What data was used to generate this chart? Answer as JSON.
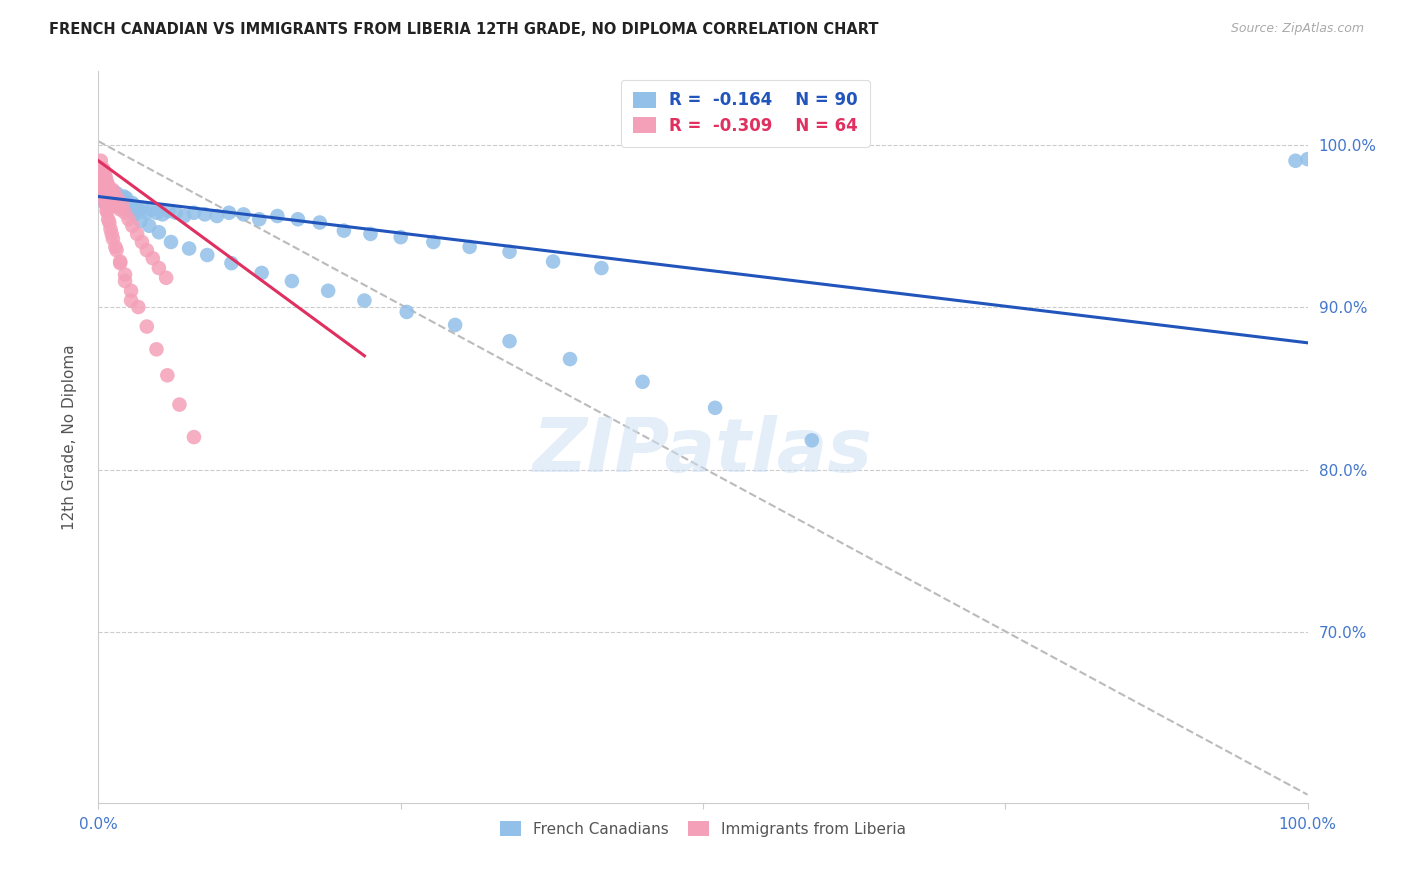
{
  "title": "FRENCH CANADIAN VS IMMIGRANTS FROM LIBERIA 12TH GRADE, NO DIPLOMA CORRELATION CHART",
  "source": "Source: ZipAtlas.com",
  "ylabel": "12th Grade, No Diploma",
  "ytick_labels": [
    "100.0%",
    "90.0%",
    "80.0%",
    "70.0%"
  ],
  "ytick_values": [
    1.0,
    0.9,
    0.8,
    0.7
  ],
  "xlim": [
    0.0,
    1.0
  ],
  "ylim": [
    0.595,
    1.045
  ],
  "watermark": "ZIPatlas",
  "legend_blue_r": "-0.164",
  "legend_blue_n": "90",
  "legend_pink_r": "-0.309",
  "legend_pink_n": "64",
  "legend_label_blue": "French Canadians",
  "legend_label_pink": "Immigrants from Liberia",
  "blue_color": "#92c0e8",
  "pink_color": "#f4a0b8",
  "trendline_blue_color": "#2255bb",
  "trendline_pink_color": "#e03060",
  "trendline_gray_color": "#bbbbbb",
  "grid_color": "#cccccc",
  "title_color": "#222222",
  "source_color": "#aaaaaa",
  "right_axis_color": "#4477cc",
  "blue_x": [
    0.003,
    0.004,
    0.005,
    0.005,
    0.005,
    0.006,
    0.006,
    0.007,
    0.007,
    0.008,
    0.008,
    0.008,
    0.009,
    0.009,
    0.01,
    0.01,
    0.01,
    0.011,
    0.011,
    0.012,
    0.012,
    0.013,
    0.013,
    0.014,
    0.014,
    0.015,
    0.015,
    0.016,
    0.017,
    0.018,
    0.019,
    0.02,
    0.021,
    0.022,
    0.023,
    0.024,
    0.026,
    0.028,
    0.03,
    0.033,
    0.036,
    0.04,
    0.044,
    0.048,
    0.053,
    0.058,
    0.064,
    0.071,
    0.079,
    0.088,
    0.098,
    0.108,
    0.12,
    0.133,
    0.148,
    0.165,
    0.183,
    0.203,
    0.225,
    0.25,
    0.277,
    0.307,
    0.34,
    0.376,
    0.416,
    0.013,
    0.017,
    0.02,
    0.025,
    0.03,
    0.035,
    0.042,
    0.05,
    0.06,
    0.075,
    0.09,
    0.11,
    0.135,
    0.16,
    0.19,
    0.22,
    0.255,
    0.295,
    0.34,
    0.39,
    0.45,
    0.51,
    0.59,
    0.99,
    1.0
  ],
  "blue_y": [
    0.97,
    0.965,
    0.968,
    0.972,
    0.975,
    0.967,
    0.971,
    0.968,
    0.973,
    0.965,
    0.969,
    0.973,
    0.966,
    0.97,
    0.964,
    0.968,
    0.972,
    0.966,
    0.97,
    0.963,
    0.967,
    0.965,
    0.969,
    0.963,
    0.967,
    0.966,
    0.97,
    0.964,
    0.968,
    0.962,
    0.966,
    0.963,
    0.968,
    0.963,
    0.967,
    0.964,
    0.96,
    0.964,
    0.961,
    0.96,
    0.961,
    0.958,
    0.96,
    0.958,
    0.957,
    0.959,
    0.958,
    0.956,
    0.958,
    0.957,
    0.956,
    0.958,
    0.957,
    0.954,
    0.956,
    0.954,
    0.952,
    0.947,
    0.945,
    0.943,
    0.94,
    0.937,
    0.934,
    0.928,
    0.924,
    0.97,
    0.967,
    0.964,
    0.96,
    0.957,
    0.953,
    0.95,
    0.946,
    0.94,
    0.936,
    0.932,
    0.927,
    0.921,
    0.916,
    0.91,
    0.904,
    0.897,
    0.889,
    0.879,
    0.868,
    0.854,
    0.838,
    0.818,
    0.99,
    0.991
  ],
  "pink_x": [
    0.002,
    0.003,
    0.003,
    0.004,
    0.004,
    0.005,
    0.005,
    0.005,
    0.006,
    0.006,
    0.007,
    0.007,
    0.008,
    0.008,
    0.009,
    0.009,
    0.01,
    0.01,
    0.011,
    0.012,
    0.013,
    0.014,
    0.015,
    0.016,
    0.018,
    0.02,
    0.022,
    0.025,
    0.028,
    0.032,
    0.036,
    0.04,
    0.045,
    0.05,
    0.056,
    0.003,
    0.004,
    0.005,
    0.006,
    0.007,
    0.008,
    0.01,
    0.012,
    0.015,
    0.018,
    0.022,
    0.027,
    0.033,
    0.04,
    0.048,
    0.057,
    0.067,
    0.079,
    0.003,
    0.004,
    0.005,
    0.006,
    0.007,
    0.009,
    0.011,
    0.014,
    0.018,
    0.022,
    0.027
  ],
  "pink_y": [
    0.99,
    0.985,
    0.98,
    0.985,
    0.978,
    0.982,
    0.977,
    0.972,
    0.98,
    0.974,
    0.977,
    0.971,
    0.975,
    0.969,
    0.973,
    0.967,
    0.971,
    0.964,
    0.968,
    0.972,
    0.965,
    0.969,
    0.962,
    0.966,
    0.96,
    0.963,
    0.958,
    0.954,
    0.95,
    0.945,
    0.94,
    0.935,
    0.93,
    0.924,
    0.918,
    0.975,
    0.971,
    0.967,
    0.963,
    0.959,
    0.954,
    0.948,
    0.942,
    0.935,
    0.928,
    0.92,
    0.91,
    0.9,
    0.888,
    0.874,
    0.858,
    0.84,
    0.82,
    0.978,
    0.973,
    0.969,
    0.964,
    0.959,
    0.952,
    0.945,
    0.937,
    0.927,
    0.916,
    0.904
  ],
  "blue_trendline_x": [
    0.0,
    1.0
  ],
  "blue_trendline_y": [
    0.968,
    0.878
  ],
  "pink_trendline_x": [
    0.0,
    0.22
  ],
  "pink_trendline_y": [
    0.99,
    0.87
  ],
  "gray_trendline_x": [
    0.0,
    1.0
  ],
  "gray_trendline_y": [
    1.002,
    0.6
  ]
}
